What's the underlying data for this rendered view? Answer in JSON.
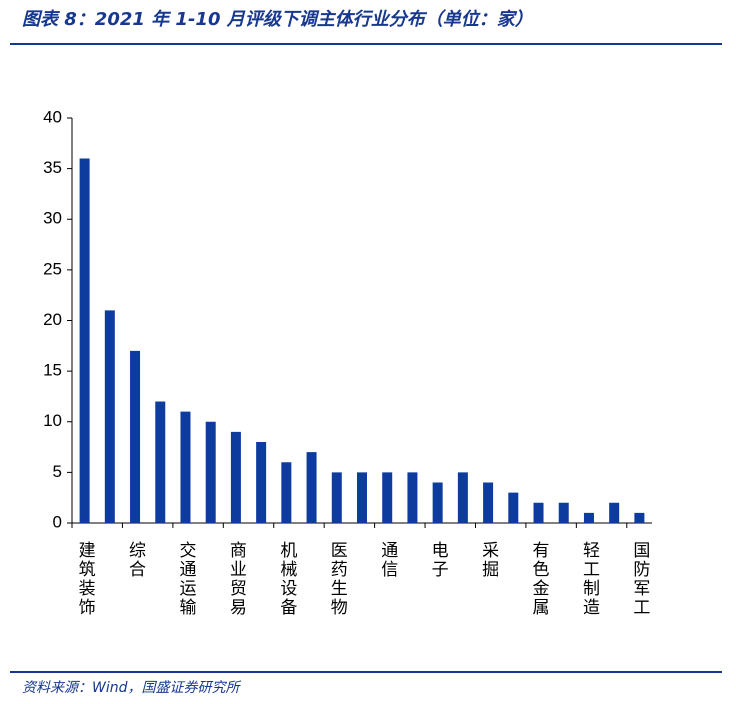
{
  "title": "图表 8：2021 年 1-10 月评级下调主体行业分布（单位：家）",
  "source": "资料来源：Wind，国盛证券研究所",
  "chart_data": {
    "type": "bar",
    "categories": [
      "建筑装饰",
      null,
      "综合",
      null,
      "交通运输",
      null,
      "商业贸易",
      null,
      "机械设备",
      null,
      "医药生物",
      null,
      "通信",
      null,
      "电子",
      null,
      "采掘",
      null,
      "有色金属",
      null,
      "轻工制造",
      null,
      "国防军工"
    ],
    "values": [
      36,
      21,
      17,
      12,
      11,
      10,
      9,
      8,
      6,
      7,
      5,
      5,
      5,
      5,
      4,
      5,
      4,
      3,
      2,
      2,
      1,
      2,
      1
    ],
    "color": "#0d3b9e",
    "ylim": [
      0,
      40
    ],
    "yticks": [
      0,
      5,
      10,
      15,
      20,
      25,
      30,
      35,
      40
    ],
    "grid": false
  }
}
